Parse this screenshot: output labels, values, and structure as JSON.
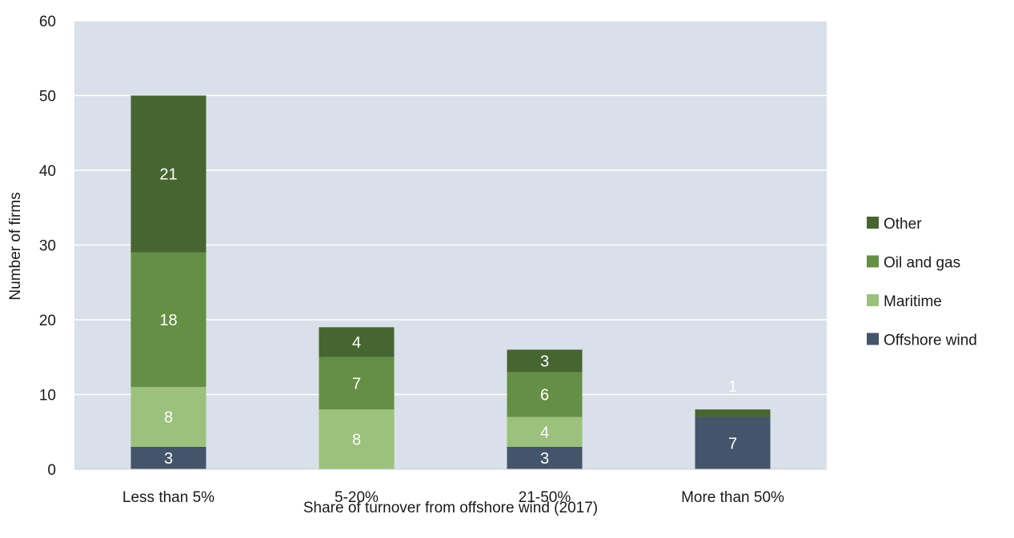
{
  "chart_data": {
    "type": "bar",
    "stacked": true,
    "title": "",
    "xlabel": "Share of turnover from offshore wind (2017)",
    "ylabel": "Number of firms",
    "ylim": [
      0,
      60
    ],
    "yticks": [
      0,
      10,
      20,
      30,
      40,
      50,
      60
    ],
    "grid": true,
    "legend_position": "right",
    "categories": [
      "Less than 5%",
      "5-20%",
      "21-50%",
      "More than 50%"
    ],
    "series": [
      {
        "name": "Offshore wind",
        "color": "#44546a",
        "values": [
          3,
          0,
          3,
          7
        ],
        "labels": [
          "3",
          "",
          "3",
          "7"
        ]
      },
      {
        "name": "Maritime",
        "color": "#9bc17c",
        "values": [
          8,
          8,
          4,
          0
        ],
        "labels": [
          "8",
          "8",
          "4",
          ""
        ]
      },
      {
        "name": "Oil and gas",
        "color": "#648f45",
        "values": [
          18,
          7,
          6,
          0
        ],
        "labels": [
          "18",
          "7",
          "6",
          ""
        ]
      },
      {
        "name": "Other",
        "color": "#476530",
        "values": [
          21,
          4,
          3,
          1
        ],
        "labels": [
          "21",
          "4",
          "3",
          "1"
        ]
      }
    ],
    "legend_order": [
      "Other",
      "Oil and gas",
      "Maritime",
      "Offshore wind"
    ],
    "plot_background": "#d9e0e9",
    "grid_color": "#ffffff"
  }
}
